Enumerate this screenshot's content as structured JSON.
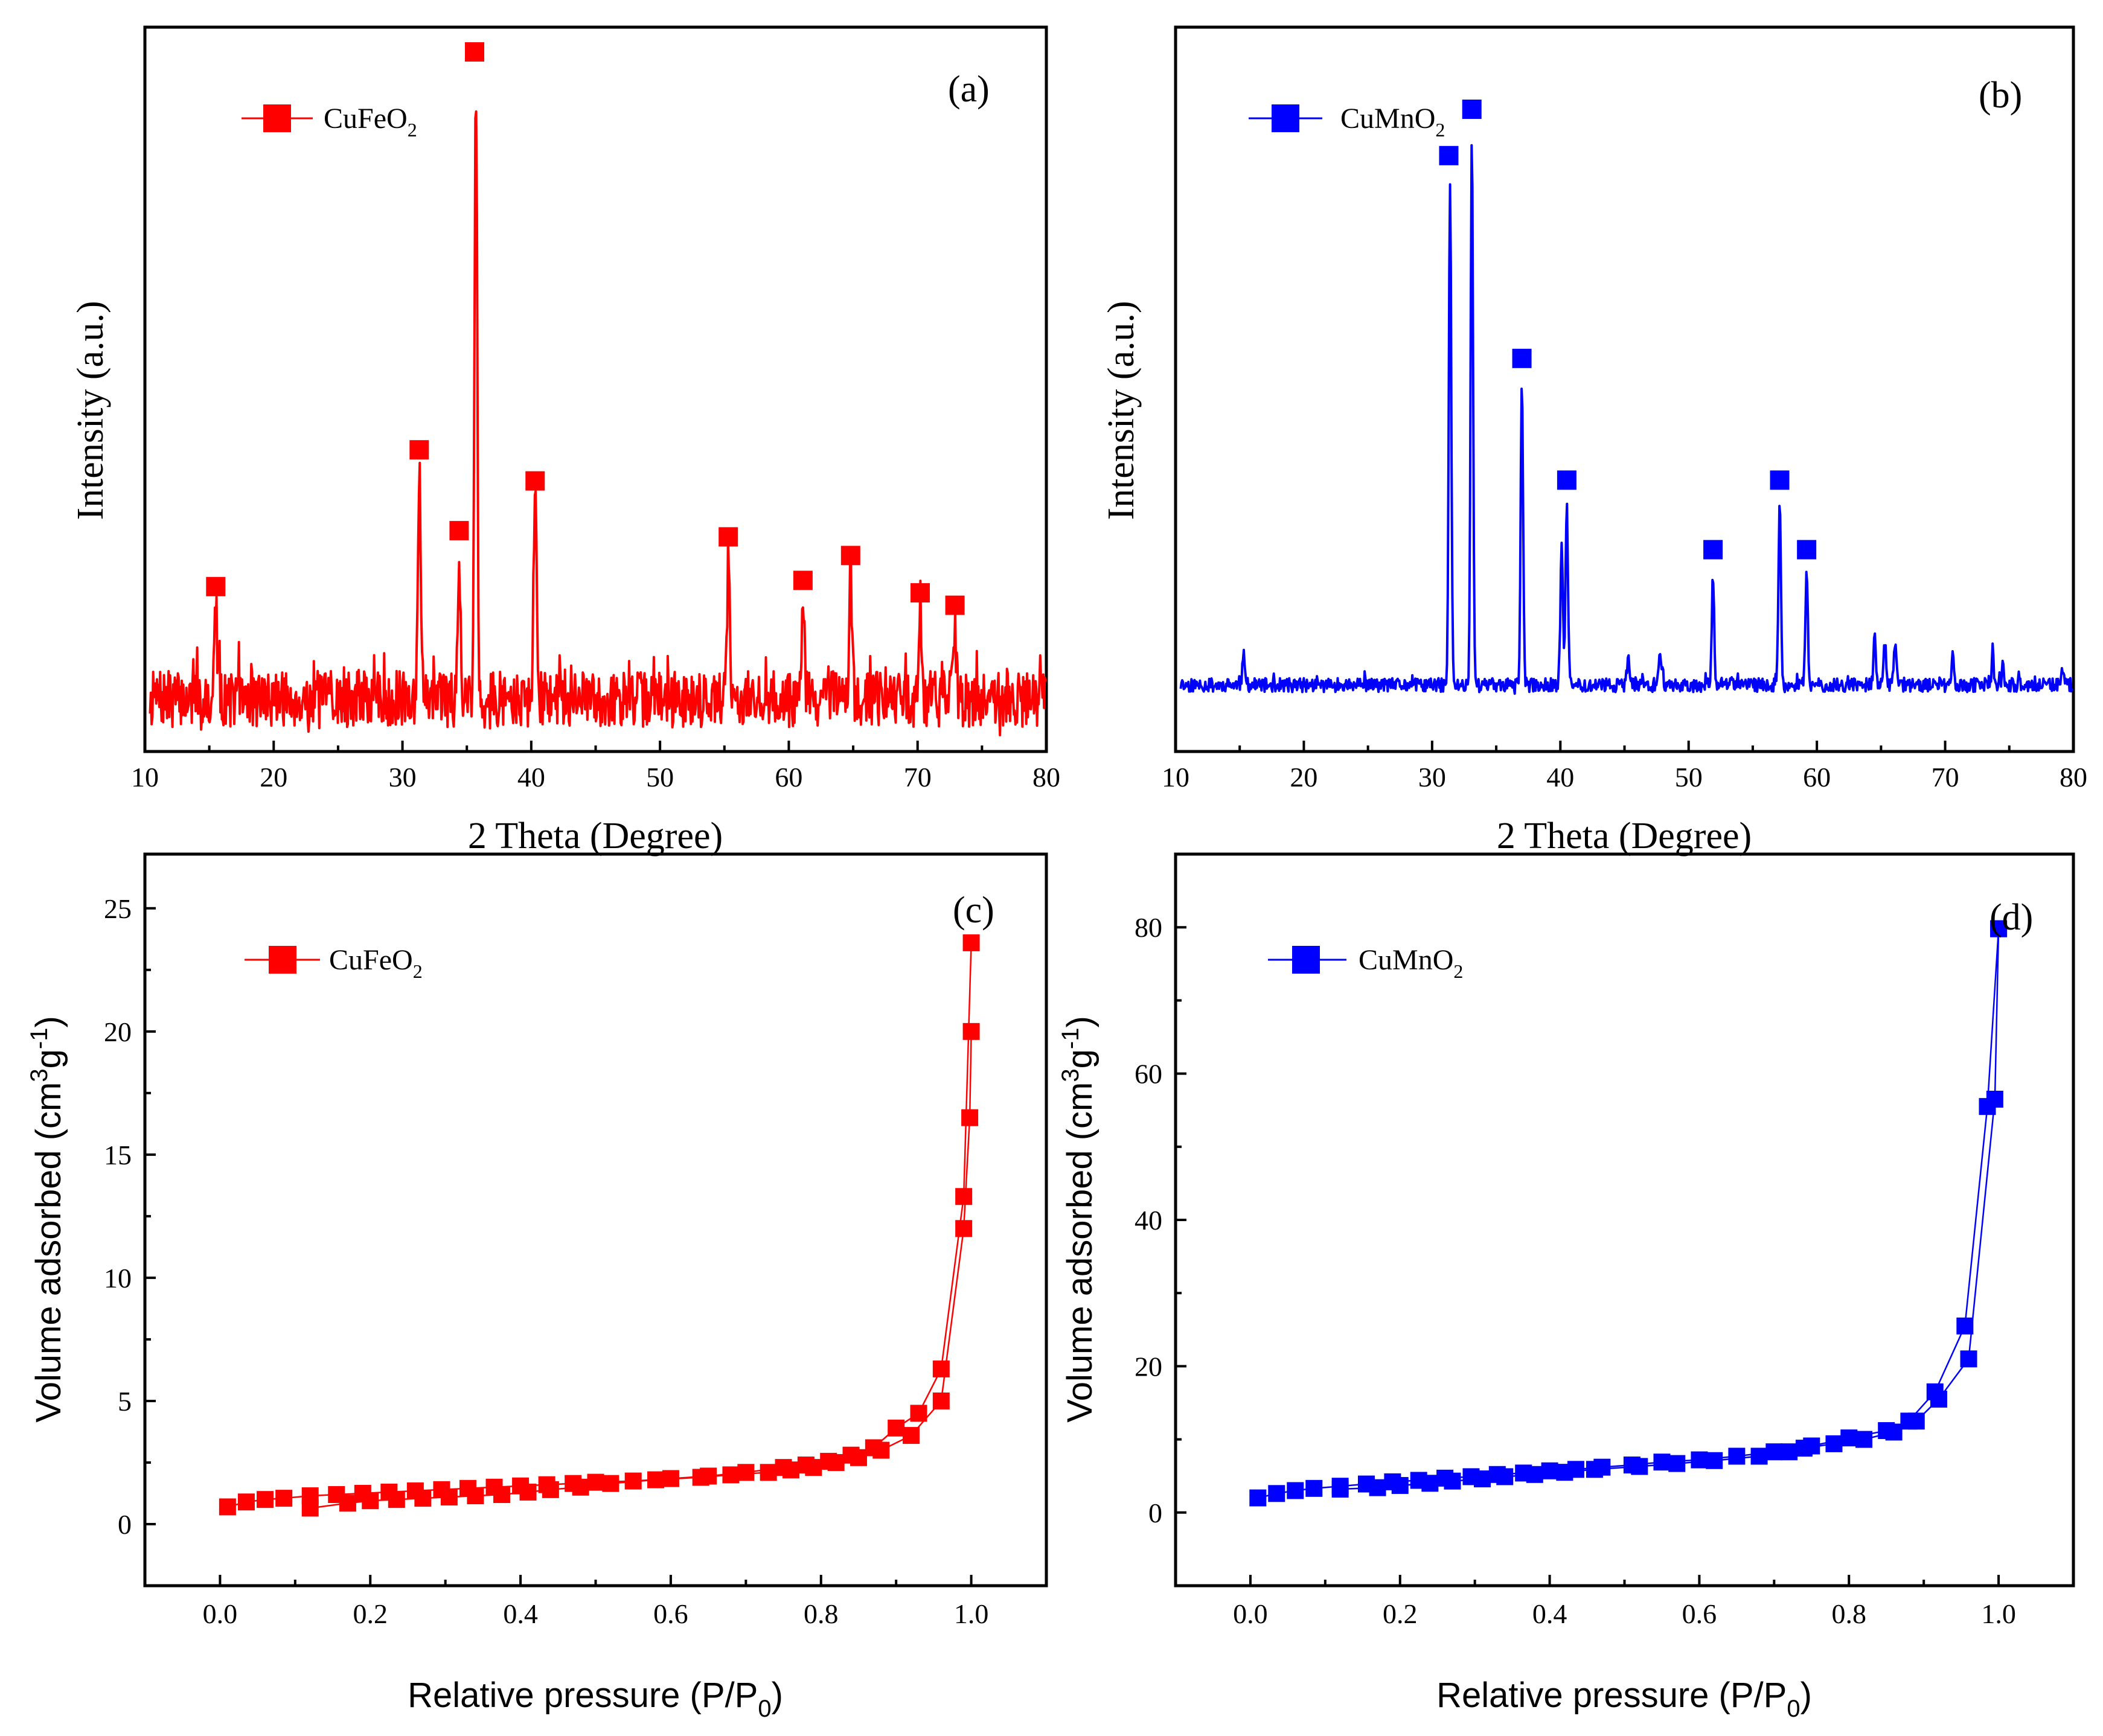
{
  "chart_data": [
    {
      "panel_label": "(a)",
      "type": "line",
      "color": "#ff0000",
      "xlabel": "2 Theta (Degree)",
      "ylabel": "Intensity (a.u.)",
      "xlim": [
        10,
        80
      ],
      "xticks": [
        "10",
        "20",
        "30",
        "40",
        "50",
        "60",
        "70",
        "80"
      ],
      "legend": {
        "label": "CuFeO",
        "sub": "2",
        "placement": "top-left"
      },
      "peaks": [
        {
          "x": 15.5,
          "h": 0.14,
          "w": 0.25
        },
        {
          "x": 31.3,
          "h": 0.36,
          "w": 0.25
        },
        {
          "x": 34.4,
          "h": 0.23,
          "w": 0.25
        },
        {
          "x": 35.7,
          "h": 1.0,
          "w": 0.22
        },
        {
          "x": 40.3,
          "h": 0.31,
          "w": 0.25
        },
        {
          "x": 55.3,
          "h": 0.22,
          "w": 0.25
        },
        {
          "x": 61.1,
          "h": 0.15,
          "w": 0.25
        },
        {
          "x": 64.8,
          "h": 0.19,
          "w": 0.25
        },
        {
          "x": 70.2,
          "h": 0.13,
          "w": 0.25
        },
        {
          "x": 72.9,
          "h": 0.11,
          "w": 0.25
        }
      ],
      "markers": [
        15.5,
        31.3,
        34.4,
        35.6,
        40.3,
        55.3,
        61.1,
        64.8,
        70.2,
        72.9
      ],
      "noise": 0.045,
      "seed": 7
    },
    {
      "panel_label": "(b)",
      "type": "line",
      "color": "#0000ff",
      "xlabel": "2 Theta (Degree)",
      "ylabel": "Intensity (a.u.)",
      "xlim": [
        10,
        80
      ],
      "xticks": [
        "10",
        "20",
        "30",
        "40",
        "50",
        "60",
        "70",
        "80"
      ],
      "legend": {
        "label": "CuMnO",
        "sub": "2",
        "placement": "top-left"
      },
      "peaks": [
        {
          "x": 15.3,
          "h": 0.05,
          "w": 0.2
        },
        {
          "x": 31.4,
          "h": 0.87,
          "w": 0.2
        },
        {
          "x": 33.1,
          "h": 0.95,
          "w": 0.2
        },
        {
          "x": 37.0,
          "h": 0.52,
          "w": 0.2
        },
        {
          "x": 40.1,
          "h": 0.25,
          "w": 0.2
        },
        {
          "x": 40.5,
          "h": 0.31,
          "w": 0.2
        },
        {
          "x": 45.3,
          "h": 0.04,
          "w": 0.25
        },
        {
          "x": 47.8,
          "h": 0.05,
          "w": 0.3
        },
        {
          "x": 51.9,
          "h": 0.19,
          "w": 0.2
        },
        {
          "x": 57.1,
          "h": 0.31,
          "w": 0.2
        },
        {
          "x": 59.2,
          "h": 0.19,
          "w": 0.2
        },
        {
          "x": 64.5,
          "h": 0.08,
          "w": 0.2
        },
        {
          "x": 65.3,
          "h": 0.07,
          "w": 0.2
        },
        {
          "x": 66.1,
          "h": 0.07,
          "w": 0.2
        },
        {
          "x": 70.6,
          "h": 0.07,
          "w": 0.15
        },
        {
          "x": 73.7,
          "h": 0.06,
          "w": 0.15
        },
        {
          "x": 74.5,
          "h": 0.05,
          "w": 0.15
        },
        {
          "x": 79.2,
          "h": 0.03,
          "w": 0.2
        }
      ],
      "markers": [
        31.3,
        33.1,
        37.0,
        40.5,
        51.9,
        57.1,
        59.2
      ],
      "noise": 0.012,
      "seed": 11
    },
    {
      "panel_label": "(c)",
      "type": "scatter",
      "color": "#ff0000",
      "xlabel": "Relative pressure (P/P",
      "xlabel_sub": "0",
      "xlabel_end": ")",
      "ylabel": "Volume adsorbed (cm",
      "ylabel_sup": "3",
      "ylabel_mid": "g",
      "ylabel_sup2": "-1",
      "ylabel_end": ")",
      "xlim": [
        -0.1,
        1.1
      ],
      "ylim": [
        -2.5,
        27.2
      ],
      "xticks": [
        0.0,
        0.2,
        0.4,
        0.6,
        0.8,
        1.0
      ],
      "xtick_labels": [
        "0.0",
        "0.2",
        "0.4",
        "0.6",
        "0.8",
        "1.0"
      ],
      "yticks": [
        0,
        5,
        10,
        15,
        20,
        25
      ],
      "ytick_labels": [
        "0",
        "5",
        "10",
        "15",
        "20",
        "25"
      ],
      "legend": {
        "label": "CuFeO",
        "sub": "2",
        "placement": "top-left"
      },
      "series": [
        {
          "name": "adsorption",
          "x": [
            0.01,
            0.035,
            0.06,
            0.085,
            0.12,
            0.155,
            0.19,
            0.225,
            0.26,
            0.295,
            0.33,
            0.365,
            0.4,
            0.435,
            0.47,
            0.5,
            0.55,
            0.6,
            0.65,
            0.7,
            0.75,
            0.78,
            0.81,
            0.84,
            0.87,
            0.9,
            0.93,
            0.96,
            0.99,
            1.0
          ],
          "y": [
            0.7,
            0.9,
            1.0,
            1.05,
            1.15,
            1.2,
            1.25,
            1.3,
            1.35,
            1.4,
            1.45,
            1.5,
            1.55,
            1.6,
            1.65,
            1.7,
            1.75,
            1.85,
            1.95,
            2.1,
            2.3,
            2.4,
            2.55,
            2.8,
            3.1,
            3.9,
            4.5,
            6.3,
            13.3,
            23.6
          ]
        },
        {
          "name": "desorption",
          "x": [
            1.0,
            0.998,
            0.99,
            0.96,
            0.92,
            0.88,
            0.85,
            0.82,
            0.79,
            0.76,
            0.73,
            0.68,
            0.64,
            0.58,
            0.52,
            0.48,
            0.44,
            0.41,
            0.375,
            0.34,
            0.305,
            0.27,
            0.235,
            0.2,
            0.17,
            0.12
          ],
          "y": [
            20.0,
            16.5,
            12.0,
            5.0,
            3.6,
            3.0,
            2.7,
            2.5,
            2.3,
            2.2,
            2.1,
            2.0,
            1.9,
            1.8,
            1.65,
            1.5,
            1.4,
            1.3,
            1.2,
            1.15,
            1.1,
            1.05,
            1.0,
            0.95,
            0.85,
            0.65
          ]
        }
      ]
    },
    {
      "panel_label": "(d)",
      "type": "scatter",
      "color": "#0000ff",
      "xlabel": "Relative pressure (P/P",
      "xlabel_sub": "0",
      "xlabel_end": ")",
      "ylabel": "Volume adsorbed (cm",
      "ylabel_sup": "3",
      "ylabel_mid": "g",
      "ylabel_sup2": "-1",
      "ylabel_end": ")",
      "xlim": [
        -0.1,
        1.1
      ],
      "ylim": [
        -10,
        90
      ],
      "xticks": [
        0.0,
        0.2,
        0.4,
        0.6,
        0.8,
        1.0
      ],
      "xtick_labels": [
        "0.0",
        "0.2",
        "0.4",
        "0.6",
        "0.8",
        "1.0"
      ],
      "yticks": [
        0,
        20,
        40,
        60,
        80
      ],
      "ytick_labels": [
        "0",
        "20",
        "40",
        "60",
        "80"
      ],
      "legend": {
        "label": "CuMnO",
        "sub": "2",
        "placement": "top-left"
      },
      "series": [
        {
          "name": "adsorption",
          "x": [
            0.01,
            0.035,
            0.06,
            0.085,
            0.12,
            0.155,
            0.19,
            0.225,
            0.26,
            0.295,
            0.33,
            0.365,
            0.4,
            0.435,
            0.47,
            0.51,
            0.55,
            0.6,
            0.65,
            0.7,
            0.75,
            0.8,
            0.85,
            0.88,
            0.915,
            0.955,
            0.985,
            1.0
          ],
          "y": [
            2.0,
            2.6,
            3.0,
            3.3,
            3.6,
            3.9,
            4.2,
            4.4,
            4.7,
            4.9,
            5.2,
            5.4,
            5.7,
            5.9,
            6.2,
            6.5,
            6.9,
            7.2,
            7.7,
            8.3,
            9.1,
            10.2,
            11.2,
            12.5,
            16.5,
            25.5,
            55.5,
            79.8
          ]
        },
        {
          "name": "desorption",
          "x": [
            1.0,
            0.995,
            0.96,
            0.92,
            0.89,
            0.86,
            0.82,
            0.78,
            0.74,
            0.72,
            0.68,
            0.62,
            0.57,
            0.52,
            0.46,
            0.42,
            0.38,
            0.34,
            0.31,
            0.27,
            0.24,
            0.2,
            0.17,
            0.12
          ],
          "y": [
            79.8,
            56.5,
            21.0,
            15.5,
            12.5,
            11.0,
            10.0,
            9.4,
            8.8,
            8.3,
            7.7,
            7.1,
            6.7,
            6.3,
            5.9,
            5.5,
            5.2,
            4.9,
            4.6,
            4.3,
            4.0,
            3.7,
            3.4,
            3.2
          ]
        }
      ]
    }
  ]
}
